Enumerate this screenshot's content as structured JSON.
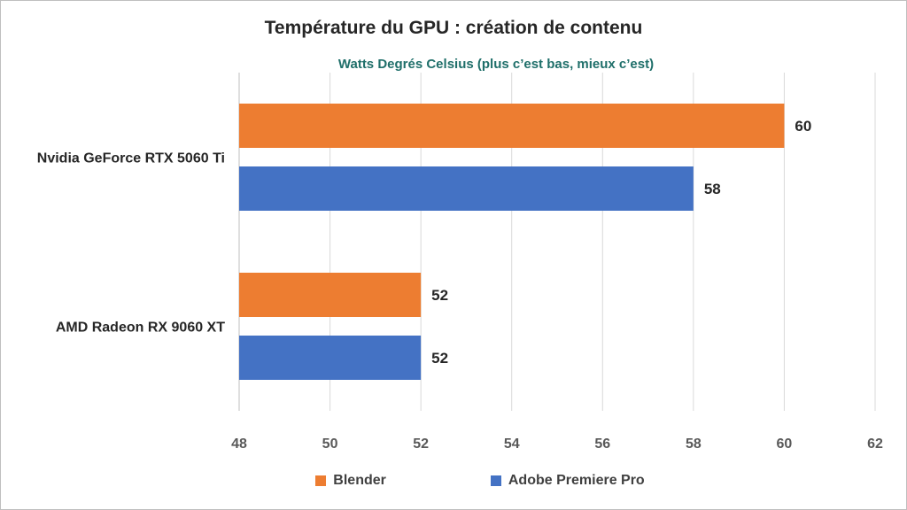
{
  "chart_data": {
    "type": "bar",
    "orientation": "horizontal",
    "title": "Température du GPU : création de contenu",
    "subtitle": "Watts Degrés Celsius (plus c’est bas, mieux c’est)",
    "categories": [
      "Nvidia GeForce RTX 5060 Ti",
      "AMD Radeon RX 9060 XT"
    ],
    "series": [
      {
        "name": "Blender",
        "color": "#ed7d31",
        "values": [
          60,
          52
        ]
      },
      {
        "name": "Adobe Premiere Pro",
        "color": "#4472c4",
        "values": [
          58,
          52
        ]
      }
    ],
    "xlim": [
      48,
      62
    ],
    "xticks": [
      48,
      50,
      52,
      54,
      56,
      58,
      60,
      62
    ],
    "grid": true,
    "legend_position": "bottom"
  }
}
